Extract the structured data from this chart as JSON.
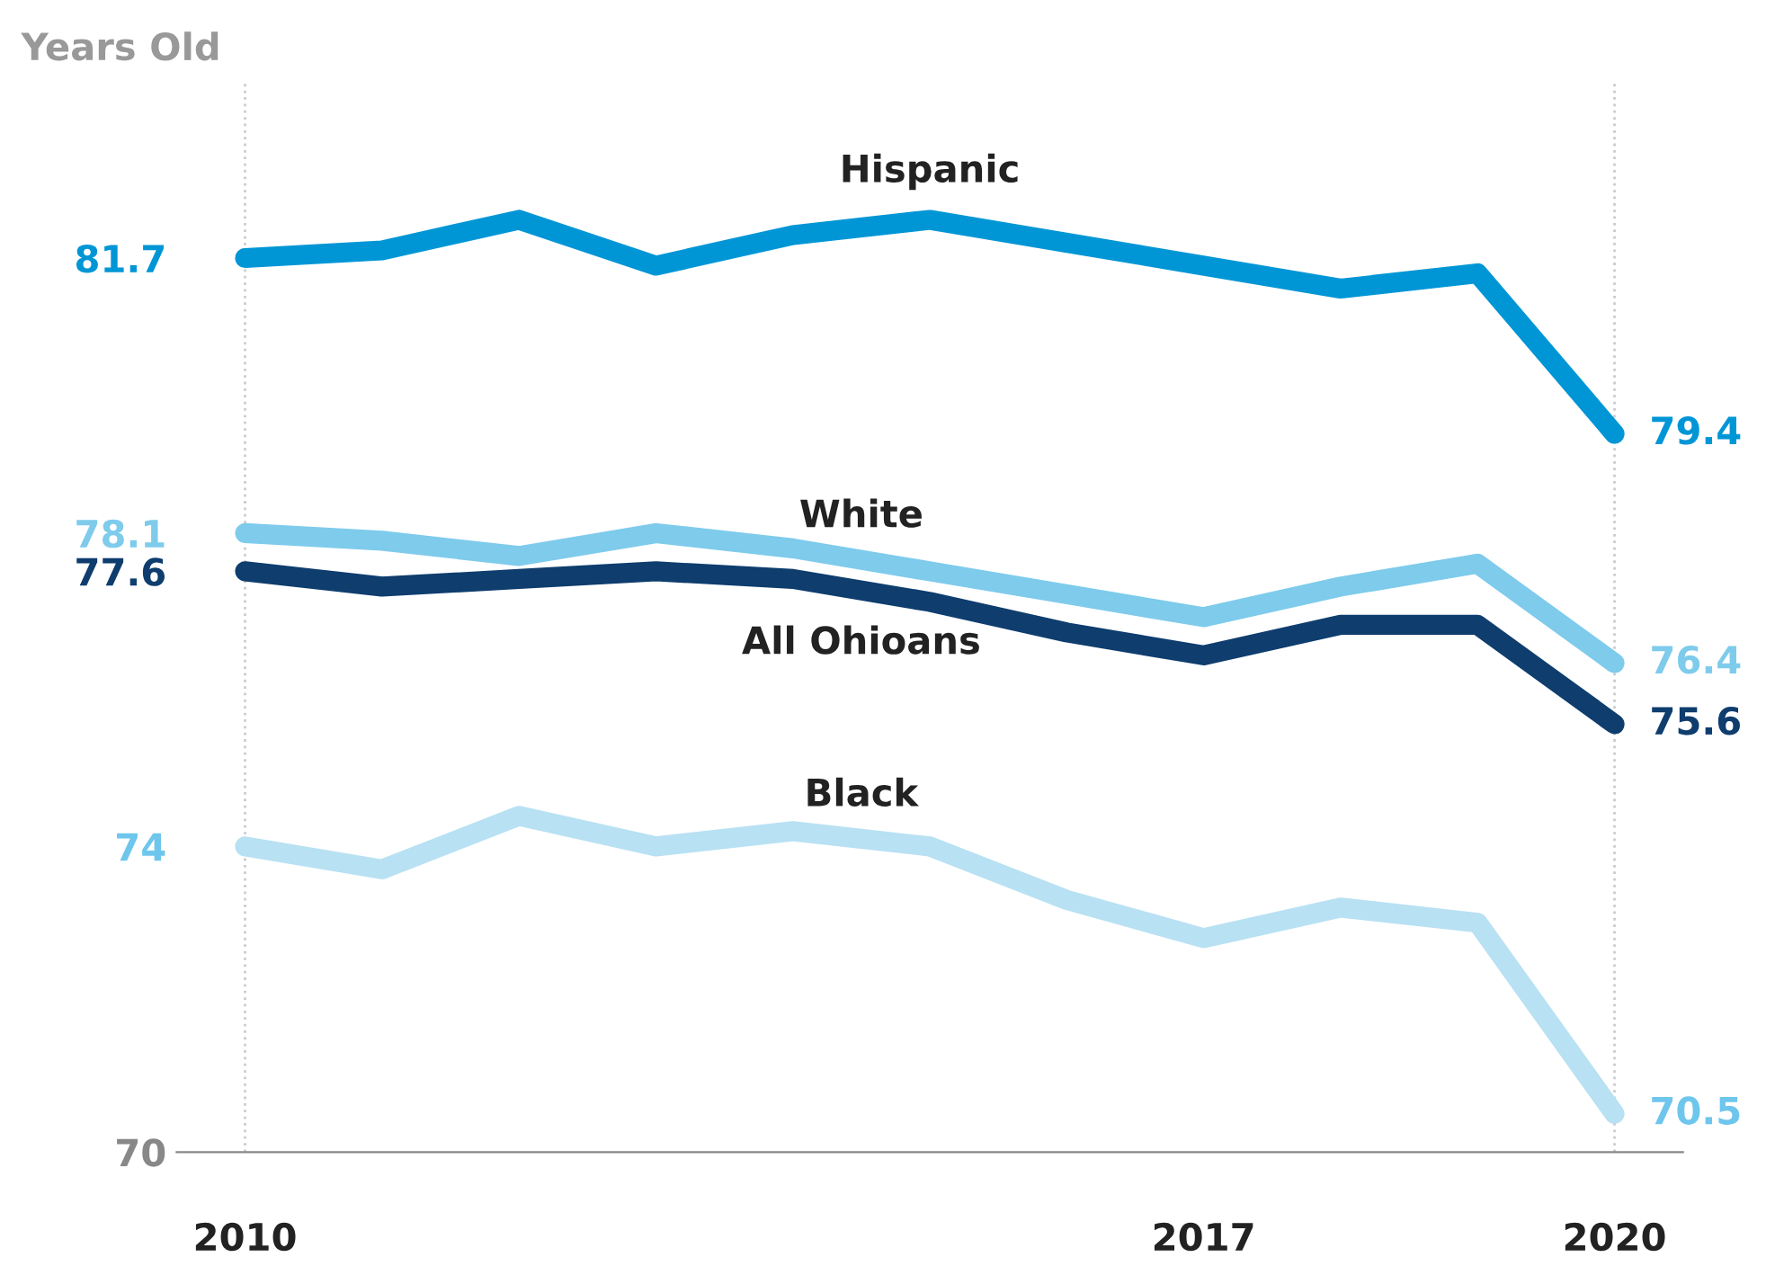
{
  "chart_data": {
    "type": "line",
    "ylabel": "Years Old",
    "x": [
      2010,
      2011,
      2012,
      2013,
      2014,
      2015,
      2016,
      2017,
      2018,
      2019,
      2020
    ],
    "xlim": [
      2009.5,
      2020.5
    ],
    "xticks": [
      2010,
      2017,
      2020
    ],
    "ylim": [
      70,
      84
    ],
    "yticks": [
      70,
      74,
      77.6,
      78.1,
      81.7
    ],
    "grid": false,
    "legend": false,
    "line_style": "solid",
    "ref_lines": [
      {
        "axis": "x",
        "value": 2010,
        "label": null,
        "color": "#cccccc",
        "line_style": "dotted"
      },
      {
        "axis": "x",
        "value": 2020,
        "label": null,
        "color": "#cccccc",
        "line_style": "dotted"
      }
    ],
    "series": [
      {
        "name": "Hispanic",
        "color": "#0096d6",
        "values": [
          81.7,
          81.8,
          82.2,
          81.6,
          82.0,
          82.2,
          81.9,
          81.6,
          81.3,
          81.5,
          79.4
        ],
        "value_labels": [
          null,
          null,
          null,
          null,
          null,
          null,
          null,
          null,
          null,
          null,
          "79.4"
        ]
      },
      {
        "name": "White",
        "color": "#7ecbec",
        "values": [
          78.1,
          78.0,
          77.8,
          78.1,
          77.9,
          77.6,
          77.3,
          77.0,
          77.4,
          77.7,
          76.4
        ],
        "value_labels": [
          null,
          null,
          null,
          null,
          null,
          null,
          null,
          null,
          null,
          null,
          "76.4"
        ]
      },
      {
        "name": "All Ohioans",
        "color": "#0e3d6e",
        "values": [
          77.6,
          77.4,
          77.5,
          77.6,
          77.5,
          77.2,
          76.8,
          76.5,
          76.9,
          76.9,
          75.6
        ],
        "value_labels": [
          null,
          null,
          null,
          null,
          null,
          null,
          null,
          null,
          null,
          null,
          "75.6"
        ]
      },
      {
        "name": "Black",
        "color": "#b8e1f3",
        "values": [
          74.0,
          73.7,
          74.4,
          74.0,
          74.2,
          74.0,
          73.3,
          72.8,
          73.2,
          73.0,
          70.5
        ],
        "value_labels": [
          null,
          null,
          null,
          null,
          null,
          null,
          null,
          null,
          null,
          null,
          "70.5"
        ]
      }
    ]
  }
}
